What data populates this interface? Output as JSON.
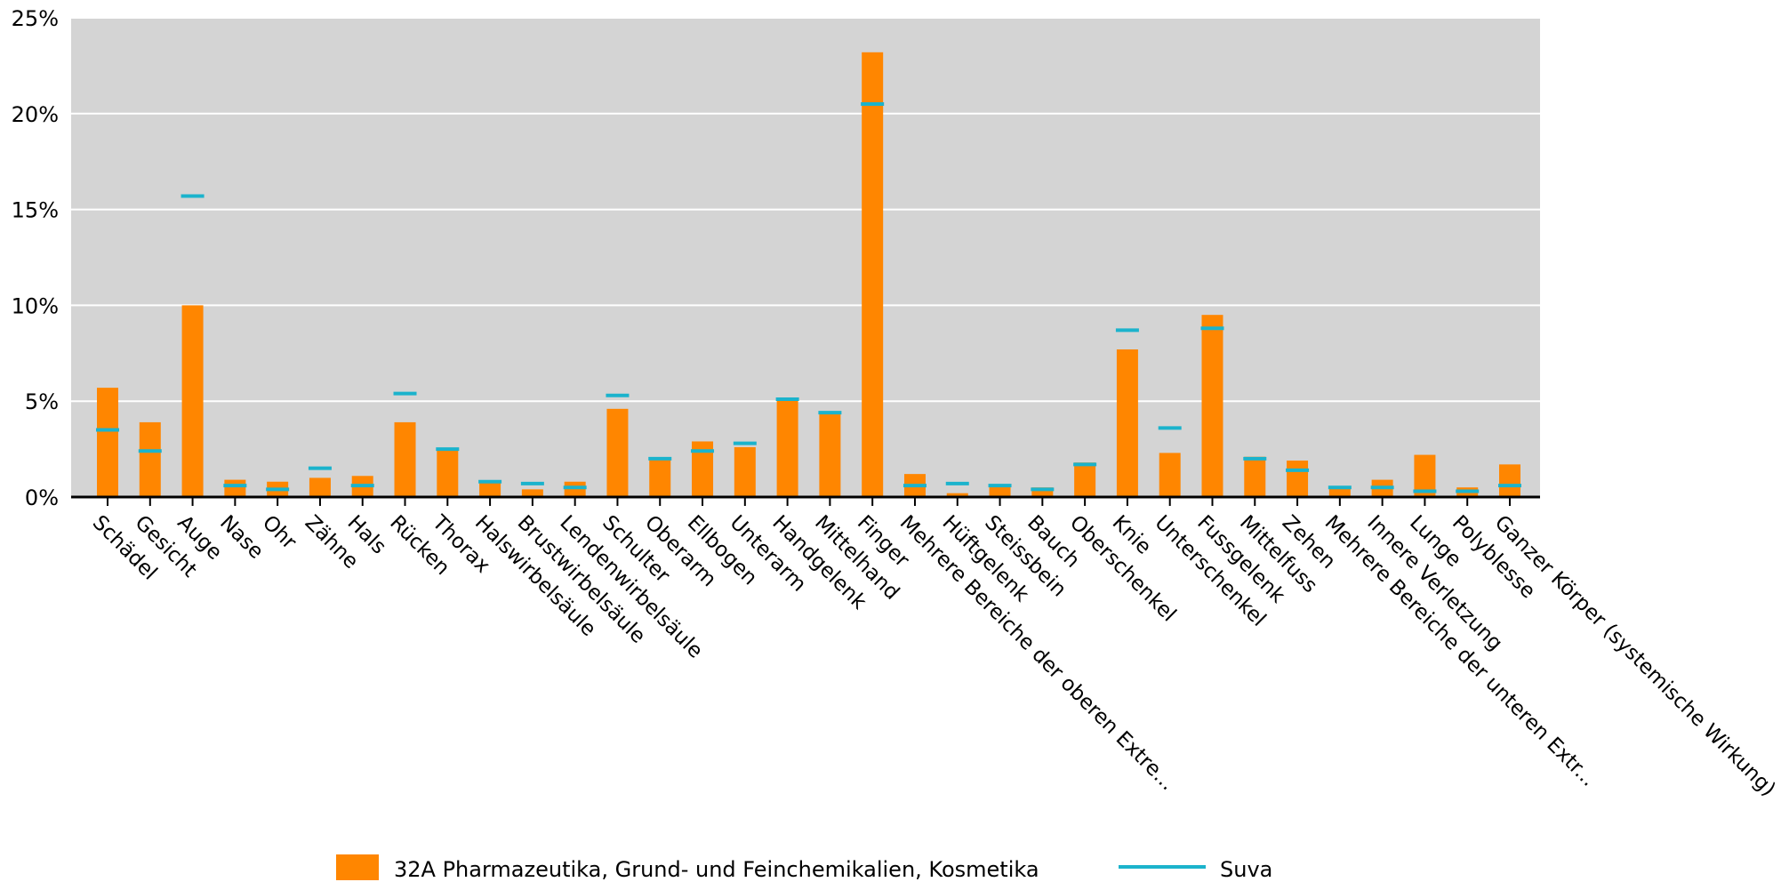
{
  "chart_data": {
    "type": "bar",
    "categories": [
      "Schädel",
      "Gesicht",
      "Auge",
      "Nase",
      "Ohr",
      "Zähne",
      "Hals",
      "Rücken",
      "Thorax",
      "Halswirbelsäule",
      "Brustwirbelsäule",
      "Lendenwirbelsäule",
      "Schulter",
      "Oberarm",
      "Ellbogen",
      "Unterarm",
      "Handgelenk",
      "Mittelhand",
      "Finger",
      "Mehrere Bereiche der oberen Extre...",
      "Hüftgelenk",
      "Steissbein",
      "Bauch",
      "Oberschenkel",
      "Knie",
      "Unterschenkel",
      "Fussgelenk",
      "Mittelfuss",
      "Zehen",
      "Mehrere Bereiche der unteren Extr...",
      "Innere Verletzung",
      "Lunge",
      "Polyblesse",
      "Ganzer Körper (systemische Wirkung)"
    ],
    "series": [
      {
        "name": "32A Pharmazeutika, Grund- und Feinchemikalien, Kosmetika",
        "kind": "bar",
        "color": "#FF8600",
        "values": [
          5.7,
          3.9,
          10.0,
          0.9,
          0.8,
          1.0,
          1.1,
          3.9,
          2.5,
          0.8,
          0.4,
          0.8,
          4.6,
          2.0,
          2.9,
          2.6,
          5.1,
          4.4,
          23.2,
          1.2,
          0.2,
          0.6,
          0.5,
          1.8,
          7.7,
          2.3,
          9.5,
          2.1,
          1.9,
          0.5,
          0.9,
          2.2,
          0.5,
          1.7
        ]
      },
      {
        "name": "Suva",
        "kind": "marker",
        "color": "#1BB3CC",
        "values": [
          3.5,
          2.4,
          15.7,
          0.6,
          0.4,
          1.5,
          0.6,
          5.4,
          2.5,
          0.8,
          0.7,
          0.5,
          5.3,
          2.0,
          2.4,
          2.8,
          5.1,
          4.4,
          20.5,
          0.6,
          0.7,
          0.6,
          0.4,
          1.7,
          8.7,
          3.6,
          8.8,
          2.0,
          1.4,
          0.5,
          0.5,
          0.3,
          0.3,
          0.6
        ]
      }
    ],
    "yticks": [
      "0%",
      "5%",
      "10%",
      "15%",
      "20%",
      "25%"
    ],
    "ylim": [
      0,
      25
    ],
    "grid": true,
    "legend_position": "bottom"
  }
}
